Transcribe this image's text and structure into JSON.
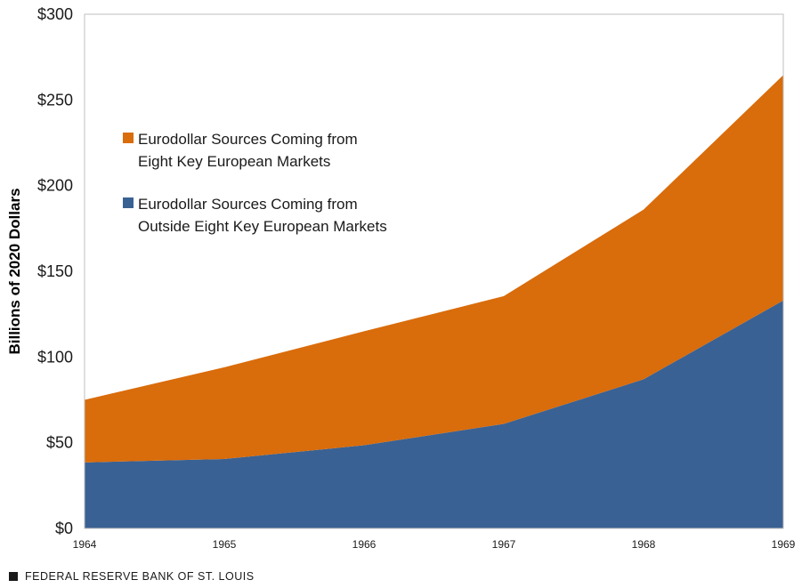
{
  "chart_data": {
    "type": "area",
    "stacked": true,
    "x": [
      "1964",
      "1965",
      "1966",
      "1967",
      "1968",
      "1969"
    ],
    "series": [
      {
        "name": "Eurodollar Sources Coming from Outside Eight Key European Markets",
        "legend_lines": [
          "Eurodollar Sources Coming from",
          "Outside Eight Key European Markets"
        ],
        "color": "#3a6193",
        "values": [
          38.5,
          40.5,
          48.5,
          61,
          87,
          133
        ]
      },
      {
        "name": "Eurodollar Sources Coming from Eight Key European Markets",
        "legend_lines": [
          "Eurodollar Sources Coming from",
          "Eight Key European Markets"
        ],
        "color": "#d96c0b",
        "values": [
          36.5,
          53.5,
          66.5,
          74.5,
          99,
          131.5
        ]
      }
    ],
    "ylabel": "Billions of 2020 Dollars",
    "ylim": [
      0,
      300
    ],
    "yticks": [
      0,
      50,
      100,
      150,
      200,
      250,
      300
    ],
    "ytick_labels": [
      "$0",
      "$50",
      "$100",
      "$150",
      "$200",
      "$250",
      "$300"
    ],
    "grid": false,
    "legend_placement": "upper-left inside plot",
    "legend_order": [
      1,
      0
    ]
  },
  "footer": {
    "source": "FEDERAL RESERVE BANK OF ST. LOUIS"
  }
}
